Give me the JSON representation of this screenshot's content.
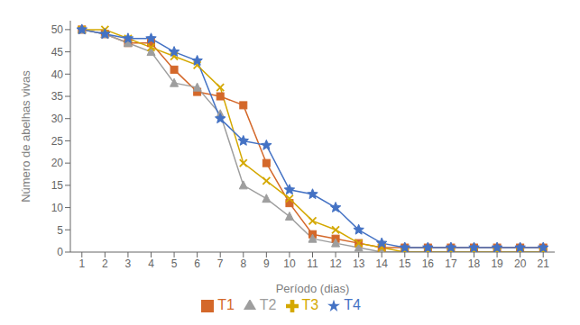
{
  "chart_data": {
    "type": "line",
    "xlabel": "Período (dias)",
    "ylabel": "Número de abelhas vivas",
    "x": [
      1,
      2,
      3,
      4,
      5,
      6,
      7,
      8,
      9,
      10,
      11,
      12,
      13,
      14,
      15,
      16,
      17,
      18,
      19,
      20,
      21
    ],
    "xlim": [
      0.5,
      21.5
    ],
    "xticks": [
      1,
      2,
      3,
      4,
      5,
      6,
      7,
      8,
      9,
      10,
      11,
      12,
      13,
      14,
      15,
      16,
      17,
      18,
      19,
      20,
      21
    ],
    "ylim": [
      0,
      52
    ],
    "yticks": [
      0,
      5,
      10,
      15,
      20,
      25,
      30,
      35,
      40,
      45,
      50
    ],
    "grid": false,
    "legend": "bottom",
    "series": [
      {
        "name": "T1",
        "color": "#D4682A",
        "marker": "square",
        "values": [
          50,
          49,
          47,
          47,
          41,
          36,
          35,
          33,
          20,
          11,
          4,
          3,
          2,
          1,
          1,
          1,
          1,
          1,
          1,
          1,
          1
        ]
      },
      {
        "name": "T2",
        "color": "#9E9E9E",
        "marker": "triangle",
        "values": [
          50,
          49,
          47,
          45,
          38,
          37,
          31,
          15,
          12,
          8,
          3,
          2,
          1,
          0,
          0,
          0,
          0,
          0,
          0,
          0,
          0
        ]
      },
      {
        "name": "T3",
        "color": "#D4A800",
        "marker": "x",
        "values": [
          50,
          50,
          48,
          46,
          44,
          42,
          37,
          20,
          16,
          12,
          7,
          5,
          2,
          1,
          0,
          0,
          0,
          0,
          0,
          0,
          0
        ]
      },
      {
        "name": "T4",
        "color": "#4472C4",
        "marker": "star",
        "values": [
          50,
          49,
          48,
          48,
          45,
          43,
          30,
          25,
          24,
          14,
          13,
          10,
          5,
          2,
          1,
          1,
          1,
          1,
          1,
          1,
          1
        ]
      }
    ]
  }
}
